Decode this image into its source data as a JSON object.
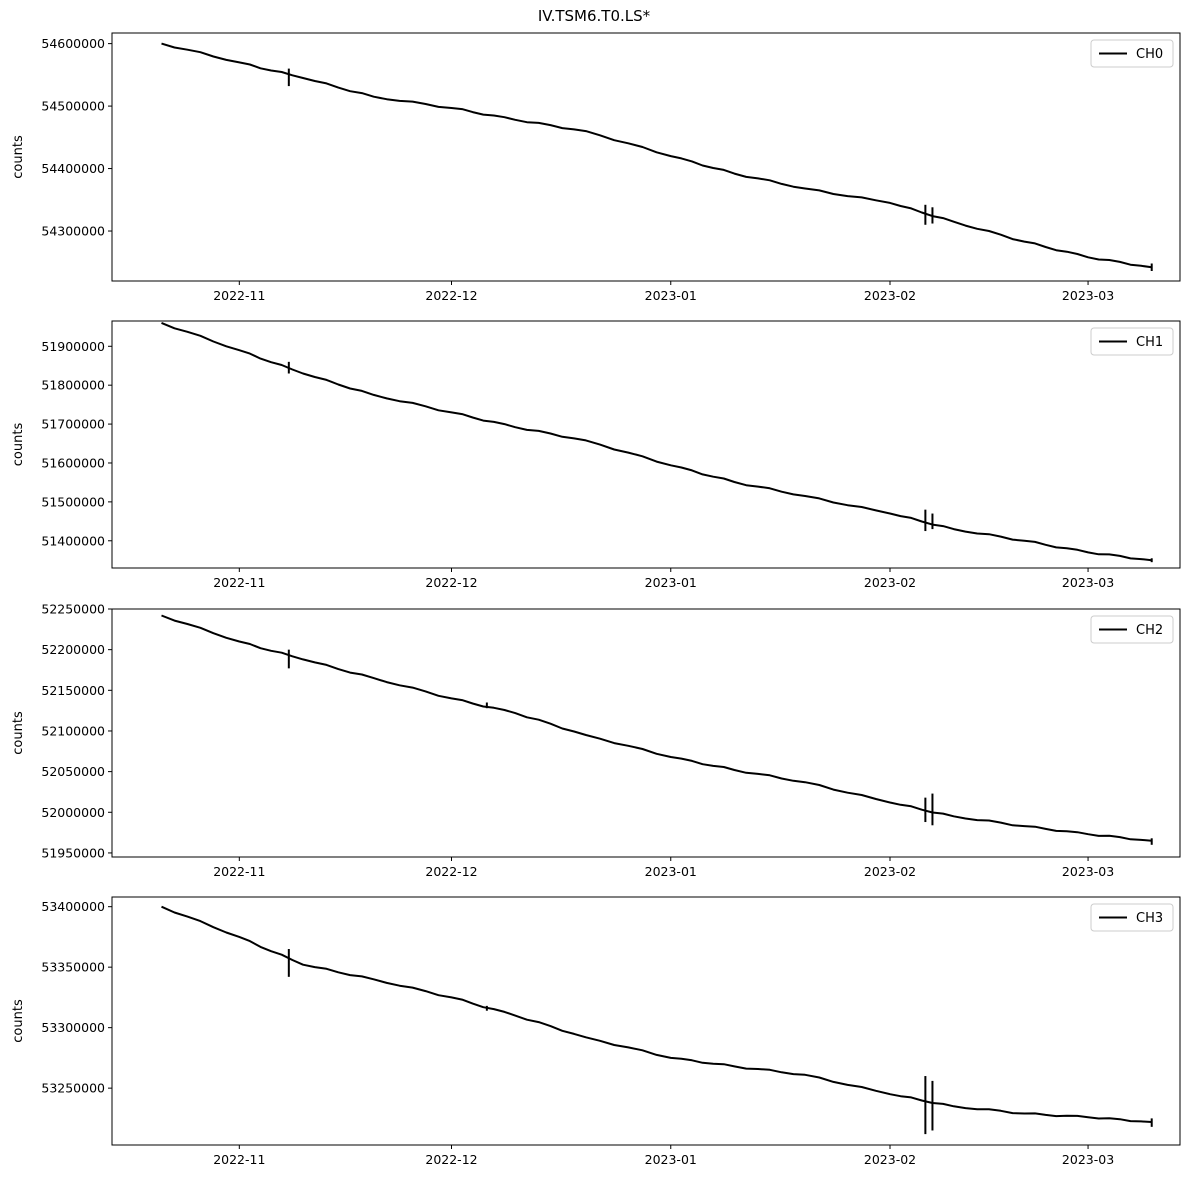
{
  "figure_title": "IV.TSM6.T0.LS*",
  "chart_data": [
    {
      "type": "line",
      "series": [
        {
          "name": "CH0",
          "color": "#000000"
        }
      ],
      "ylabel": "counts",
      "x_ticks": [
        "2022-11",
        "2022-12",
        "2023-01",
        "2023-02",
        "2023-03"
      ],
      "y_ticks": [
        54300000,
        54400000,
        54500000,
        54600000
      ],
      "ylim": [
        54220000,
        54617000
      ],
      "xlim": [
        "2022-10-14",
        "2023-03-14"
      ],
      "legend": "top-right",
      "points": [
        [
          "2022-10-21",
          54600000
        ],
        [
          "2022-11-01",
          54570000
        ],
        [
          "2022-11-10",
          54545000
        ],
        [
          "2022-11-20",
          54515000
        ],
        [
          "2022-12-01",
          54497000
        ],
        [
          "2022-12-10",
          54478000
        ],
        [
          "2022-12-20",
          54460000
        ],
        [
          "2023-01-01",
          54420000
        ],
        [
          "2023-01-10",
          54392000
        ],
        [
          "2023-01-20",
          54368000
        ],
        [
          "2023-02-01",
          54345000
        ],
        [
          "2023-02-10",
          54315000
        ],
        [
          "2023-02-20",
          54283000
        ],
        [
          "2023-03-01",
          54258000
        ],
        [
          "2023-03-10",
          54242000
        ]
      ],
      "spikes": [
        [
          "2022-11-08",
          54532000,
          54560000
        ],
        [
          "2023-02-06",
          54310000,
          54342000
        ],
        [
          "2023-02-07",
          54312000,
          54338000
        ],
        [
          "2023-03-10",
          54236000,
          54248000
        ]
      ]
    },
    {
      "type": "line",
      "series": [
        {
          "name": "CH1",
          "color": "#000000"
        }
      ],
      "ylabel": "counts",
      "x_ticks": [
        "2022-11",
        "2022-12",
        "2023-01",
        "2023-02",
        "2023-03"
      ],
      "y_ticks": [
        51400000,
        51500000,
        51600000,
        51700000,
        51800000,
        51900000
      ],
      "ylim": [
        51330000,
        51965000
      ],
      "xlim": [
        "2022-10-14",
        "2023-03-14"
      ],
      "legend": "top-right",
      "points": [
        [
          "2022-10-21",
          51960000
        ],
        [
          "2022-11-01",
          51890000
        ],
        [
          "2022-11-10",
          51830000
        ],
        [
          "2022-11-20",
          51775000
        ],
        [
          "2022-12-01",
          51730000
        ],
        [
          "2022-12-10",
          51692000
        ],
        [
          "2022-12-20",
          51658000
        ],
        [
          "2023-01-01",
          51594000
        ],
        [
          "2023-01-10",
          51551000
        ],
        [
          "2023-01-20",
          51515000
        ],
        [
          "2023-02-01",
          51470000
        ],
        [
          "2023-02-10",
          51430000
        ],
        [
          "2023-02-20",
          51400000
        ],
        [
          "2023-03-01",
          51370000
        ],
        [
          "2023-03-10",
          51350000
        ]
      ],
      "spikes": [
        [
          "2022-11-08",
          51830000,
          51860000
        ],
        [
          "2023-02-06",
          51425000,
          51480000
        ],
        [
          "2023-02-07",
          51430000,
          51470000
        ],
        [
          "2023-03-10",
          51345000,
          51355000
        ]
      ]
    },
    {
      "type": "line",
      "series": [
        {
          "name": "CH2",
          "color": "#000000"
        }
      ],
      "ylabel": "counts",
      "x_ticks": [
        "2022-11",
        "2022-12",
        "2023-01",
        "2023-02",
        "2023-03"
      ],
      "y_ticks": [
        51950000,
        52000000,
        52050000,
        52100000,
        52150000,
        52200000,
        52250000
      ],
      "ylim": [
        51945000,
        52250000
      ],
      "xlim": [
        "2022-10-14",
        "2023-03-14"
      ],
      "legend": "top-right",
      "points": [
        [
          "2022-10-21",
          52242000
        ],
        [
          "2022-11-01",
          52210000
        ],
        [
          "2022-11-10",
          52188000
        ],
        [
          "2022-11-20",
          52165000
        ],
        [
          "2022-12-01",
          52140000
        ],
        [
          "2022-12-10",
          52122000
        ],
        [
          "2022-12-20",
          52095000
        ],
        [
          "2023-01-01",
          52068000
        ],
        [
          "2023-01-10",
          52052000
        ],
        [
          "2023-01-20",
          52037000
        ],
        [
          "2023-02-01",
          52012000
        ],
        [
          "2023-02-10",
          51995000
        ],
        [
          "2023-02-20",
          51983000
        ],
        [
          "2023-03-01",
          51973000
        ],
        [
          "2023-03-10",
          51965000
        ]
      ],
      "spikes": [
        [
          "2022-11-08",
          52177000,
          52200000
        ],
        [
          "2022-12-06",
          52128000,
          52135000
        ],
        [
          "2023-02-06",
          51988000,
          52018000
        ],
        [
          "2023-02-07",
          51984000,
          52023000
        ],
        [
          "2023-03-10",
          51960000,
          51968000
        ]
      ]
    },
    {
      "type": "line",
      "series": [
        {
          "name": "CH3",
          "color": "#000000"
        }
      ],
      "ylabel": "counts",
      "x_ticks": [
        "2022-11",
        "2022-12",
        "2023-01",
        "2023-02",
        "2023-03"
      ],
      "y_ticks": [
        53250000,
        53300000,
        53350000,
        53400000
      ],
      "ylim": [
        53203000,
        53408000
      ],
      "xlim": [
        "2022-10-14",
        "2023-03-14"
      ],
      "legend": "top-right",
      "points": [
        [
          "2022-10-21",
          53400000
        ],
        [
          "2022-11-01",
          53375000
        ],
        [
          "2022-11-10",
          53352000
        ],
        [
          "2022-11-20",
          53340000
        ],
        [
          "2022-12-01",
          53325000
        ],
        [
          "2022-12-10",
          53310000
        ],
        [
          "2022-12-20",
          53292000
        ],
        [
          "2023-01-01",
          53275000
        ],
        [
          "2023-01-10",
          53268000
        ],
        [
          "2023-01-20",
          53261000
        ],
        [
          "2023-02-01",
          53245000
        ],
        [
          "2023-02-10",
          53235000
        ],
        [
          "2023-02-20",
          53229000
        ],
        [
          "2023-03-01",
          53226000
        ],
        [
          "2023-03-10",
          53222000
        ]
      ],
      "spikes": [
        [
          "2022-11-08",
          53342000,
          53365000
        ],
        [
          "2022-12-06",
          53314000,
          53318000
        ],
        [
          "2023-02-06",
          53212000,
          53260000
        ],
        [
          "2023-02-07",
          53215000,
          53256000
        ],
        [
          "2023-03-10",
          53218000,
          53225000
        ]
      ]
    }
  ]
}
